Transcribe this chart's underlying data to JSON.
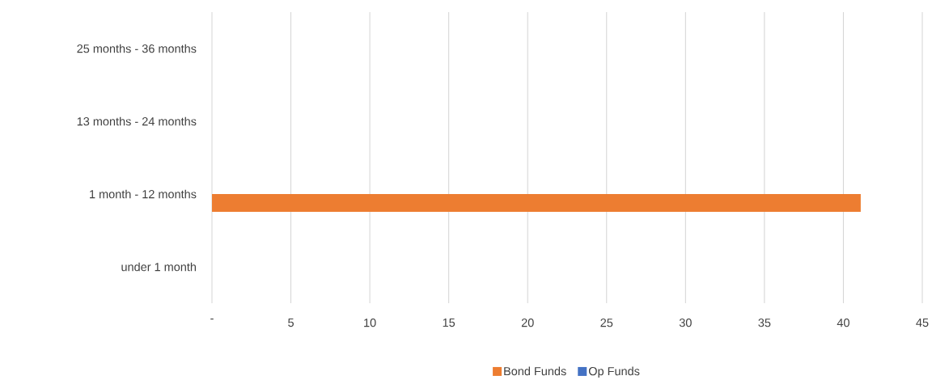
{
  "chart_data": {
    "type": "bar",
    "orientation": "horizontal",
    "categories": [
      "25 months - 36 months",
      "13 months - 24 months",
      "1 month - 12 months",
      "under 1 month"
    ],
    "series": [
      {
        "name": "Bond Funds",
        "color": "#ed7d31",
        "values": [
          0,
          0,
          41.1,
          0
        ]
      },
      {
        "name": "Op Funds",
        "color": "#4472c4",
        "values": [
          0,
          0,
          0,
          0
        ]
      }
    ],
    "xlim": [
      0,
      45
    ],
    "xticks": [
      {
        "value": 0,
        "label": "-"
      },
      5,
      10,
      15,
      20,
      25,
      30,
      35,
      40,
      45
    ],
    "grid": "x",
    "legend": "bottom"
  }
}
